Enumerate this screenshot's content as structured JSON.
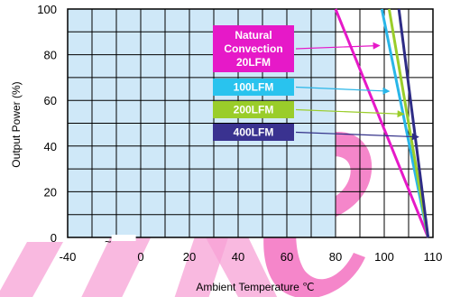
{
  "chart_data": {
    "type": "line",
    "title": "",
    "xlabel": "Ambient Temperature ℃",
    "ylabel": "Output Power  (%)",
    "xlim": [
      -40,
      110
    ],
    "ylim": [
      0,
      100
    ],
    "x_ticks": [
      "-40",
      "0",
      "20",
      "40",
      "60",
      "80",
      "100",
      "110"
    ],
    "y_ticks": [
      "0",
      "20",
      "40",
      "60",
      "80",
      "100"
    ],
    "axis_break_mark": "~",
    "grid": true,
    "shaded_region": {
      "x": [
        -40,
        70
      ],
      "color": "#cfe8f8"
    },
    "series": [
      {
        "name": "Natural Convection 20LFM",
        "color": "#e619c8",
        "label_color": "#e619c8",
        "x": [
          70,
          108
        ],
        "y": [
          100,
          0
        ]
      },
      {
        "name": "100LFM",
        "color": "#29b6e8",
        "label_color": "#29c3ee",
        "x": [
          89,
          108
        ],
        "y": [
          100,
          0
        ]
      },
      {
        "name": "200LFM",
        "color": "#9acd2a",
        "label_color": "#9acd2a",
        "x": [
          92,
          108
        ],
        "y": [
          100,
          0
        ]
      },
      {
        "name": "400LFM",
        "color": "#2e2c86",
        "label_color": "#3a3290",
        "x": [
          96,
          108
        ],
        "y": [
          100,
          0
        ]
      }
    ],
    "legend": [
      {
        "lines": [
          "Natural",
          "Convection",
          "20LFM"
        ],
        "arrow_to": [
          88,
          84
        ]
      },
      {
        "lines": [
          "100LFM"
        ],
        "arrow_to": [
          92,
          64
        ]
      },
      {
        "lines": [
          "200LFM"
        ],
        "arrow_to": [
          98,
          54
        ]
      },
      {
        "lines": [
          "400LFM"
        ],
        "arrow_to": [
          104,
          44
        ]
      }
    ],
    "watermark": {
      "text": "Live",
      "color": "#f25db8"
    }
  }
}
